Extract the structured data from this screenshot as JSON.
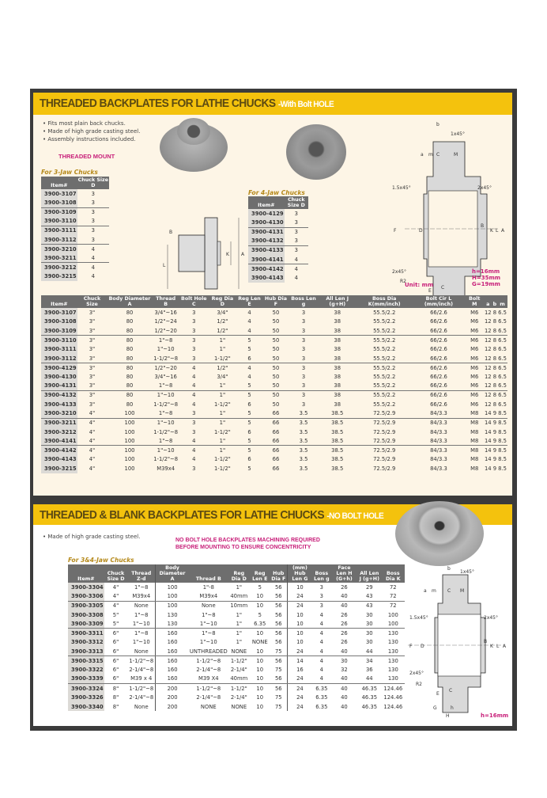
{
  "section1": {
    "title": "THREADED BACKPLATES FOR LATHE CHUCKS",
    "subtitle": "-With Bolt HOLE",
    "bullets": [
      "Fits most plain back chucks.",
      "Made of high grade casting steel.",
      "Assembly instructions included."
    ],
    "mount_label": "THREADED MOUNT",
    "table3jaw": {
      "caption": "For 3-Jaw Chucks",
      "headers": [
        "Item#",
        "Chuck Size D"
      ],
      "rows": [
        [
          "3900-3107",
          "3"
        ],
        [
          "3900-3108",
          "3"
        ],
        [
          "3900-3109",
          "3"
        ],
        [
          "3900-3110",
          "3"
        ],
        [
          "3900-3111",
          "3"
        ],
        [
          "3900-3112",
          "3"
        ],
        [
          "3900-3210",
          "4"
        ],
        [
          "3900-3211",
          "4"
        ],
        [
          "3900-3212",
          "4"
        ],
        [
          "3900-3215",
          "4"
        ]
      ]
    },
    "table4jaw": {
      "caption": "For 4-Jaw Chucks",
      "headers": [
        "Item#",
        "Chuck Size D"
      ],
      "rows": [
        [
          "3900-4129",
          "3"
        ],
        [
          "3900-4130",
          "3"
        ],
        [
          "3900-4131",
          "3"
        ],
        [
          "3900-4132",
          "3"
        ],
        [
          "3900-4133",
          "3"
        ],
        [
          "3900-4141",
          "4"
        ],
        [
          "3900-4142",
          "4"
        ],
        [
          "3900-4143",
          "4"
        ]
      ]
    },
    "diagram": {
      "labels": [
        "b",
        "1x45°",
        "a",
        "m",
        "C",
        "M",
        "1.5x45°",
        "2x45°",
        "F",
        "D",
        "B",
        "K",
        "L",
        "A",
        "2x45°",
        "R2",
        "E",
        "C",
        "G",
        "h",
        "g",
        "H",
        "J"
      ],
      "notes": [
        "h=16mm",
        "H=35mm",
        "G=19mm"
      ],
      "unit": "Unit: mm"
    },
    "side_diagram_labels": [
      "B",
      "L",
      "K",
      "A"
    ],
    "main_table": {
      "headers": [
        "Item#",
        "Chuck Size",
        "Body Diameter A",
        "Thread B",
        "Bolt Hole C",
        "Reg Dia D",
        "Reg Len E",
        "Hub Dia F",
        "Boss Len g",
        "All Len J (g+H)",
        "Boss Dia K(mm/inch)",
        "Bolt Cir L (mm/inch)",
        "Bolt M",
        "a",
        "b",
        "m"
      ],
      "rows": [
        [
          "3900-3107",
          "3\"",
          "80",
          "3/4\"~16",
          "3",
          "3/4\"",
          "4",
          "50",
          "3",
          "38",
          "55.5/2.2",
          "66/2.6",
          "M6",
          "12",
          "8",
          "6.5"
        ],
        [
          "3900-3108",
          "3\"",
          "80",
          "1/2\"~24",
          "3",
          "1/2\"",
          "4",
          "50",
          "3",
          "38",
          "55.5/2.2",
          "66/2.6",
          "M6",
          "12",
          "8",
          "6.5"
        ],
        [
          "3900-3109",
          "3\"",
          "80",
          "1/2\"~20",
          "3",
          "1/2\"",
          "4",
          "50",
          "3",
          "38",
          "55.5/2.2",
          "66/2.6",
          "M6",
          "12",
          "8",
          "6.5"
        ],
        [
          "3900-3110",
          "3\"",
          "80",
          "1\"~8",
          "3",
          "1\"",
          "5",
          "50",
          "3",
          "38",
          "55.5/2.2",
          "66/2.6",
          "M6",
          "12",
          "8",
          "6.5"
        ],
        [
          "3900-3111",
          "3\"",
          "80",
          "1\"~10",
          "3",
          "1\"",
          "5",
          "50",
          "3",
          "38",
          "55.5/2.2",
          "66/2.6",
          "M6",
          "12",
          "8",
          "6.5"
        ],
        [
          "3900-3112",
          "3\"",
          "80",
          "1-1/2\"~8",
          "3",
          "1-1/2\"",
          "6",
          "50",
          "3",
          "38",
          "55.5/2.2",
          "66/2.6",
          "M6",
          "12",
          "8",
          "6.5"
        ],
        [
          "3900-4129",
          "3\"",
          "80",
          "1/2\"~20",
          "4",
          "1/2\"",
          "4",
          "50",
          "3",
          "38",
          "55.5/2.2",
          "66/2.6",
          "M6",
          "12",
          "8",
          "6.5"
        ],
        [
          "3900-4130",
          "3\"",
          "80",
          "3/4\"~16",
          "4",
          "3/4\"",
          "4",
          "50",
          "3",
          "38",
          "55.5/2.2",
          "66/2.6",
          "M6",
          "12",
          "8",
          "6.5"
        ],
        [
          "3900-4131",
          "3\"",
          "80",
          "1\"~8",
          "4",
          "1\"",
          "5",
          "50",
          "3",
          "38",
          "55.5/2.2",
          "66/2.6",
          "M6",
          "12",
          "8",
          "6.5"
        ],
        [
          "3900-4132",
          "3\"",
          "80",
          "1\"~10",
          "4",
          "1\"",
          "5",
          "50",
          "3",
          "38",
          "55.5/2.2",
          "66/2.6",
          "M6",
          "12",
          "8",
          "6.5"
        ],
        [
          "3900-4133",
          "3\"",
          "80",
          "1-1/2\"~8",
          "4",
          "1-1/2\"",
          "6",
          "50",
          "3",
          "38",
          "55.5/2.2",
          "66/2.6",
          "M6",
          "12",
          "8",
          "6.5"
        ],
        [
          "3900-3210",
          "4\"",
          "100",
          "1\"~8",
          "3",
          "1\"",
          "5",
          "66",
          "3.5",
          "38.5",
          "72.5/2.9",
          "84/3.3",
          "M8",
          "14",
          "9",
          "8.5"
        ],
        [
          "3900-3211",
          "4\"",
          "100",
          "1\"~10",
          "3",
          "1\"",
          "5",
          "66",
          "3.5",
          "38.5",
          "72.5/2.9",
          "84/3.3",
          "M8",
          "14",
          "9",
          "8.5"
        ],
        [
          "3900-3212",
          "4\"",
          "100",
          "1-1/2\"~8",
          "3",
          "1-1/2\"",
          "6",
          "66",
          "3.5",
          "38.5",
          "72.5/2.9",
          "84/3.3",
          "M8",
          "14",
          "9",
          "8.5"
        ],
        [
          "3900-4141",
          "4\"",
          "100",
          "1\"~8",
          "4",
          "1\"",
          "5",
          "66",
          "3.5",
          "38.5",
          "72.5/2.9",
          "84/3.3",
          "M8",
          "14",
          "9",
          "8.5"
        ],
        [
          "3900-4142",
          "4\"",
          "100",
          "1\"~10",
          "4",
          "1\"",
          "5",
          "66",
          "3.5",
          "38.5",
          "72.5/2.9",
          "84/3.3",
          "M8",
          "14",
          "9",
          "8.5"
        ],
        [
          "3900-4143",
          "4\"",
          "100",
          "1-1/2\"~8",
          "4",
          "1-1/2\"",
          "6",
          "66",
          "3.5",
          "38.5",
          "72.5/2.9",
          "84/3.3",
          "M8",
          "14",
          "9",
          "8.5"
        ],
        [
          "3900-3215",
          "4\"",
          "100",
          "M39x4",
          "3",
          "1-1/2\"",
          "5",
          "66",
          "3.5",
          "38.5",
          "72.5/2.9",
          "84/3.3",
          "M8",
          "14",
          "9",
          "8.5"
        ]
      ]
    }
  },
  "section2": {
    "title": "THREADED & BLANK BACKPLATES FOR LATHE CHUCKS",
    "subtitle": "-NO BOLT HOLE",
    "bullets": [
      "Made of high grade casting steel."
    ],
    "warning": [
      "NO BOLT HOLE BACKPLATES MACHINING REQUIRED",
      "BEFORE MOUNTING TO ENSURE CONCENTRICITY"
    ],
    "table": {
      "caption": "For 3&4-Jaw Chucks",
      "headers": [
        "Item#",
        "Chuck Size D",
        "Thread Z-d",
        "Body Diameter A",
        "Thread B",
        "Reg Dia D",
        "Reg Len E",
        "Hub Dia F",
        "(mm) Hub Len G",
        "Boss Len g",
        "Face Len H (G+h)",
        "All Len J (g+H)",
        "Boss Dia K"
      ],
      "rows": [
        [
          "3900-3304",
          "4\"",
          "1\"~8",
          "100",
          "1\"-8",
          "1\"",
          "5",
          "56",
          "10",
          "3",
          "26",
          "29",
          "72"
        ],
        [
          "3900-3306",
          "4\"",
          "M39x4",
          "100",
          "M39x4",
          "40mm",
          "10",
          "56",
          "24",
          "3",
          "40",
          "43",
          "72"
        ],
        [
          "3900-3305",
          "4\"",
          "None",
          "100",
          "None",
          "10mm",
          "10",
          "56",
          "24",
          "3",
          "40",
          "43",
          "72"
        ],
        [
          "3900-3308",
          "5\"",
          "1\"~8",
          "130",
          "1\"~8",
          "1\"",
          "5",
          "56",
          "10",
          "4",
          "26",
          "30",
          "100"
        ],
        [
          "3900-3309",
          "5\"",
          "1\"~10",
          "130",
          "1\"~10",
          "1\"",
          "6.35",
          "56",
          "10",
          "4",
          "26",
          "30",
          "100"
        ],
        [
          "3900-3311",
          "6\"",
          "1\"~8",
          "160",
          "1\"~8",
          "1\"",
          "10",
          "56",
          "10",
          "4",
          "26",
          "30",
          "130"
        ],
        [
          "3900-3312",
          "6\"",
          "1\"~10",
          "160",
          "1\"~10",
          "1\"",
          "NONE",
          "56",
          "10",
          "4",
          "26",
          "30",
          "130"
        ],
        [
          "3900-3313",
          "6\"",
          "None",
          "160",
          "UNTHREADED",
          "NONE",
          "10",
          "75",
          "24",
          "4",
          "40",
          "44",
          "130"
        ],
        [
          "3900-3315",
          "6\"",
          "1-1/2\"~8",
          "160",
          "1-1/2\"~8",
          "1-1/2\"",
          "10",
          "56",
          "14",
          "4",
          "30",
          "34",
          "130"
        ],
        [
          "3900-3322",
          "6\"",
          "2-1/4\"~8",
          "160",
          "2-1/4\"~8",
          "2-1/4\"",
          "10",
          "75",
          "16",
          "4",
          "32",
          "36",
          "130"
        ],
        [
          "3900-3339",
          "6\"",
          "M39 x 4",
          "160",
          "M39 X4",
          "40mm",
          "10",
          "56",
          "24",
          "4",
          "40",
          "44",
          "130"
        ],
        [
          "3900-3324",
          "8\"",
          "1-1/2\"~8",
          "200",
          "1-1/2\"~8",
          "1-1/2\"",
          "10",
          "56",
          "24",
          "6.35",
          "40",
          "46.35",
          "124.46"
        ],
        [
          "3900-3326",
          "8\"",
          "2-1/4\"~8",
          "200",
          "2-1/4\"~8",
          "2-1/4\"",
          "10",
          "75",
          "24",
          "6.35",
          "40",
          "46.35",
          "124.46"
        ],
        [
          "3900-3340",
          "8\"",
          "None",
          "200",
          "NONE",
          "NONE",
          "10",
          "75",
          "24",
          "6.35",
          "40",
          "46.35",
          "124.46"
        ]
      ]
    },
    "diagram": {
      "notes": [
        "h=16mm"
      ]
    }
  },
  "colors": {
    "band": "#f4c20d",
    "title": "#5c4a12",
    "accent": "#c8207a",
    "frame": "#3b3b3b",
    "header": "#6e6e6e",
    "cream": "#fdf5e6"
  }
}
